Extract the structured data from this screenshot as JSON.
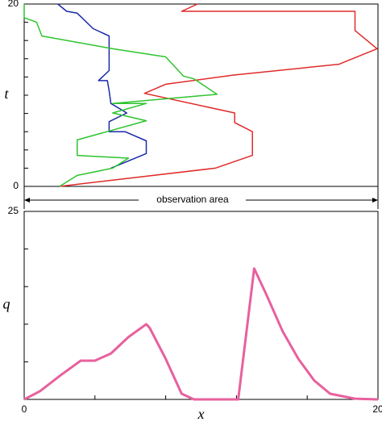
{
  "chart_data": [
    {
      "type": "line",
      "ylabel": "t",
      "annotation": "observation area",
      "xlim": [
        0,
        20
      ],
      "ylim": [
        0,
        20
      ],
      "yticks": [
        0,
        20
      ],
      "minor_yticks": [
        2,
        4,
        6,
        8,
        10,
        12,
        14,
        16,
        18
      ],
      "series": [
        {
          "color": "#e02a2a",
          "x": [
            2.0,
            10.8,
            12.9,
            12.9,
            11.9,
            11.9,
            6.8,
            8.0,
            11.8,
            17.8,
            19.95,
            18.7,
            18.7,
            8.9,
            9.8
          ],
          "values": [
            0,
            2.0,
            3.4,
            6.0,
            7.0,
            8.05,
            10.2,
            11.2,
            12.2,
            13.4,
            15.1,
            17.1,
            19.2,
            19.2,
            20
          ]
        },
        {
          "color": "#1a2aa8",
          "x": [
            4.9,
            6.9,
            6.9,
            5.7,
            4.8,
            4.8,
            5.8,
            4.9,
            4.8,
            4.7,
            4.2,
            4.8,
            4.8,
            4.8,
            3.9,
            3.0,
            2.4,
            1.9
          ],
          "values": [
            2.0,
            3.6,
            5.0,
            6.0,
            6.0,
            7.1,
            8.05,
            9.1,
            10.5,
            11.6,
            11.6,
            12.7,
            15.0,
            16.5,
            17.3,
            19.0,
            19.2,
            20
          ]
        },
        {
          "color": "#2ec42e",
          "x": [
            2.0,
            3.0,
            5.0,
            5.9,
            3.0,
            3.0,
            6.9,
            5.0,
            6.9,
            5.0,
            10.9,
            9.6,
            9.0,
            8.0,
            5.0,
            1.0,
            0.7,
            0,
            0
          ],
          "values": [
            0,
            1.2,
            2.0,
            3.1,
            3.4,
            5.1,
            7.2,
            8.05,
            9.1,
            9.1,
            10.1,
            11.8,
            12.1,
            14.2,
            15.1,
            16.5,
            18.0,
            18.5,
            20
          ]
        }
      ]
    },
    {
      "type": "line",
      "xlabel": "x",
      "ylabel": "q",
      "xlim": [
        0,
        20
      ],
      "ylim": [
        0,
        25
      ],
      "xticks": [
        0,
        20
      ],
      "minor_xticks": [
        4,
        8,
        12,
        16
      ],
      "yticks": [
        25
      ],
      "minor_yticks": [
        5,
        10,
        15,
        20
      ],
      "series": [
        {
          "color": "#e8609e",
          "x": [
            0,
            0.9,
            2.05,
            3.2,
            4.0,
            4.9,
            5.9,
            6.9,
            7.1,
            8.0,
            8.9,
            9.6,
            12.1,
            13.0,
            13.7,
            14.6,
            15.5,
            16.4,
            17.3,
            18.7,
            20
          ],
          "values": [
            0,
            1.1,
            3.2,
            5.15,
            5.15,
            6.1,
            8.3,
            10.0,
            9.5,
            5.4,
            0.75,
            0,
            0,
            17.4,
            13.9,
            9.1,
            5.4,
            2.5,
            0.75,
            0.1,
            0
          ]
        }
      ]
    }
  ]
}
